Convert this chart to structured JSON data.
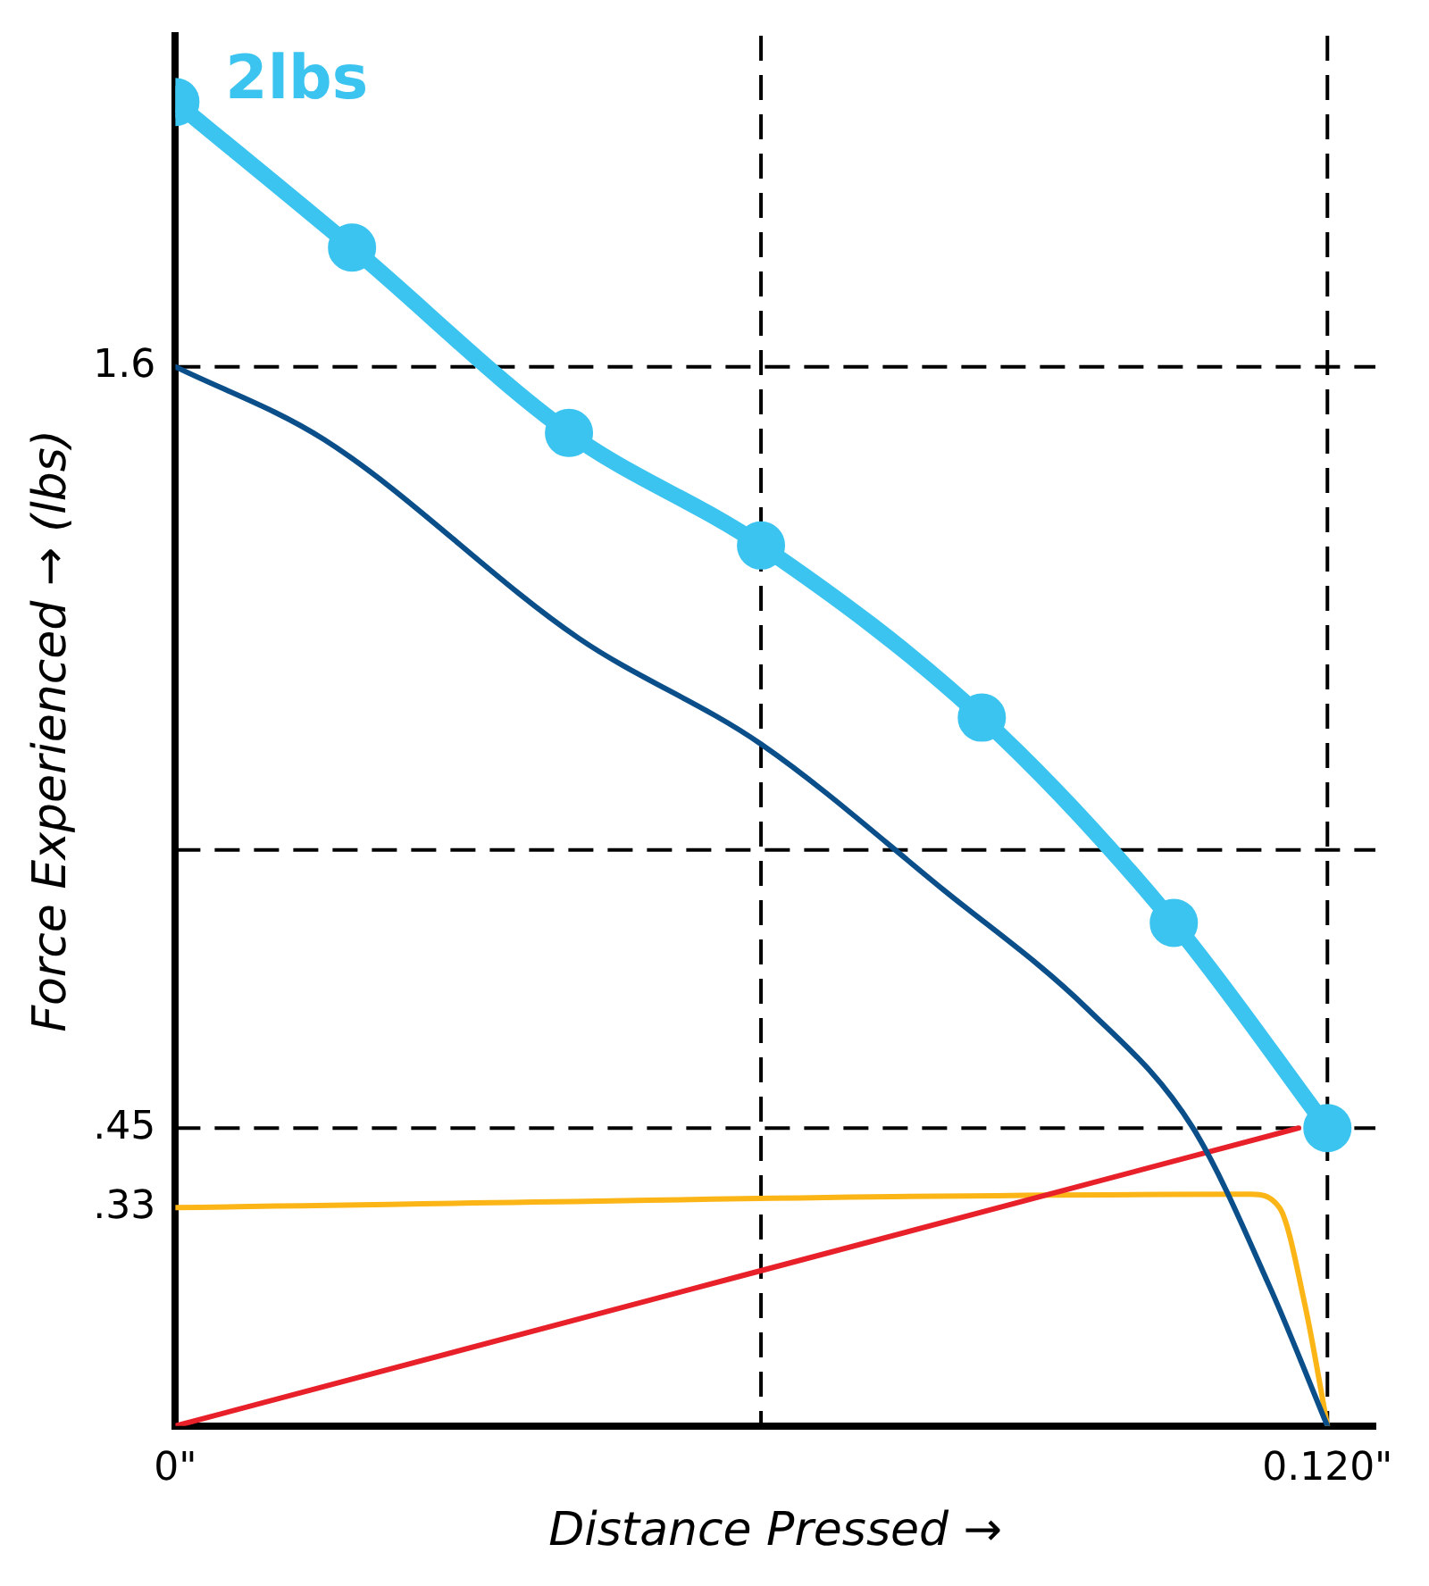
{
  "chart_data": {
    "type": "line",
    "xlabel": "Distance Pressed →",
    "ylabel": "Force Experienced → (lbs)",
    "xlim": [
      0,
      0.125
    ],
    "xticks": [
      {
        "value": 0,
        "label": "0\""
      },
      {
        "value": 0.12,
        "label": "0.120\""
      }
    ],
    "ylim": [
      0,
      2.1
    ],
    "yticks": [
      {
        "value": 0.33,
        "label": ".33"
      },
      {
        "value": 0.45,
        "label": ".45"
      },
      {
        "value": 1.6,
        "label": "1.6"
      }
    ],
    "grid": false,
    "legend": false,
    "series": [
      {
        "color": "#3cc4f0",
        "marker": "circle",
        "x": [
          0,
          0.0184,
          0.041,
          0.061,
          0.084,
          0.104,
          0.12
        ],
        "values": [
          2.0,
          1.78,
          1.5,
          1.33,
          1.07,
          0.76,
          0.45
        ]
      },
      {
        "color": "#0b4f8a",
        "marker": "none",
        "x": [
          0,
          0.0155,
          0.042,
          0.061,
          0.08,
          0.095,
          0.106,
          0.114,
          0.12
        ],
        "values": [
          1.6,
          1.49,
          1.19,
          1.03,
          0.81,
          0.63,
          0.45,
          0.21,
          0
        ]
      },
      {
        "color": "#e8202a",
        "marker": "none",
        "x": [
          0,
          0.117
        ],
        "values": [
          0,
          0.45
        ]
      },
      {
        "color": "#fbb516",
        "marker": "none",
        "x": [
          0,
          0.112,
          0.115,
          0.1177,
          0.12
        ],
        "values": [
          0.33,
          0.35,
          0.33,
          0.18,
          0
        ]
      }
    ],
    "ref_lines": [
      {
        "axis": "y",
        "value": 1.6,
        "line_style": "dashed"
      },
      {
        "axis": "y",
        "value": 0.87,
        "line_style": "dashed"
      },
      {
        "axis": "y",
        "value": 0.45,
        "line_style": "dashed"
      },
      {
        "axis": "x",
        "value": 0.061,
        "line_style": "dashed"
      },
      {
        "axis": "x",
        "value": 0.12,
        "line_style": "dashed"
      }
    ],
    "annotations": [
      {
        "text": "2lbs",
        "x": 0,
        "y": 2.0
      }
    ]
  }
}
